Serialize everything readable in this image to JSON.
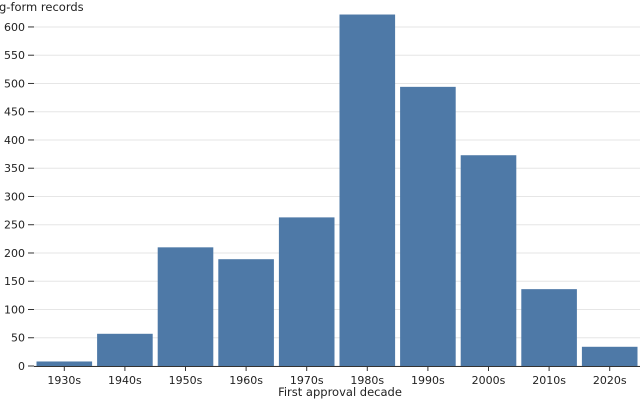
{
  "chart_data": {
    "type": "bar",
    "title": "",
    "ylabel": "g-form records",
    "xlabel": "First approval decade",
    "categories": [
      "1930s",
      "1940s",
      "1950s",
      "1960s",
      "1970s",
      "1980s",
      "1990s",
      "2000s",
      "2010s",
      "2020s"
    ],
    "values": [
      8,
      57,
      210,
      189,
      263,
      622,
      494,
      373,
      136,
      34
    ],
    "ylim": [
      0,
      630
    ],
    "yticks": [
      0,
      50,
      100,
      150,
      200,
      250,
      300,
      350,
      400,
      450,
      500,
      550,
      600
    ],
    "ytick_labels": [
      "0",
      "50",
      "100",
      "150",
      "200",
      "250",
      "300",
      "350",
      "400",
      "450",
      "500",
      "550",
      "600"
    ],
    "grid": true,
    "bar_color": "#4e79a7",
    "grid_color": "#e6e6e6"
  }
}
